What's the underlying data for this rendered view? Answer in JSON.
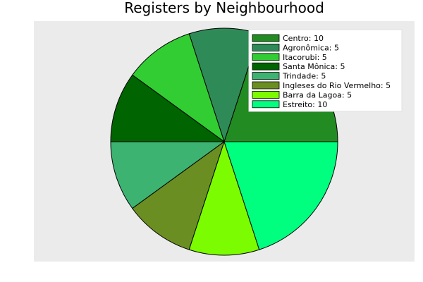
{
  "chart_data": {
    "type": "pie",
    "title": "Registers by Neighbourhood",
    "legend_position": "top-right",
    "background": "#ebebeb",
    "categories": [
      "Centro",
      "Agronômica",
      "Itacorubi",
      "Santa Mônica",
      "Trindade",
      "Ingleses do Rio Vermelho",
      "Barra da Lagoa",
      "Estreito"
    ],
    "values": [
      10,
      5,
      5,
      5,
      5,
      5,
      5,
      10
    ],
    "legend_labels": [
      "Centro: 10",
      "Agronômica: 5",
      "Itacorubi: 5",
      "Santa Mônica: 5",
      "Trindade: 5",
      "Ingleses do Rio Vermelho: 5",
      "Barra da Lagoa: 5",
      "Estreito: 10"
    ],
    "colors": [
      "#228b22",
      "#2e8b57",
      "#32cd32",
      "#006400",
      "#3cb371",
      "#6b8e23",
      "#7cfc00",
      "#00ff7f"
    ]
  }
}
